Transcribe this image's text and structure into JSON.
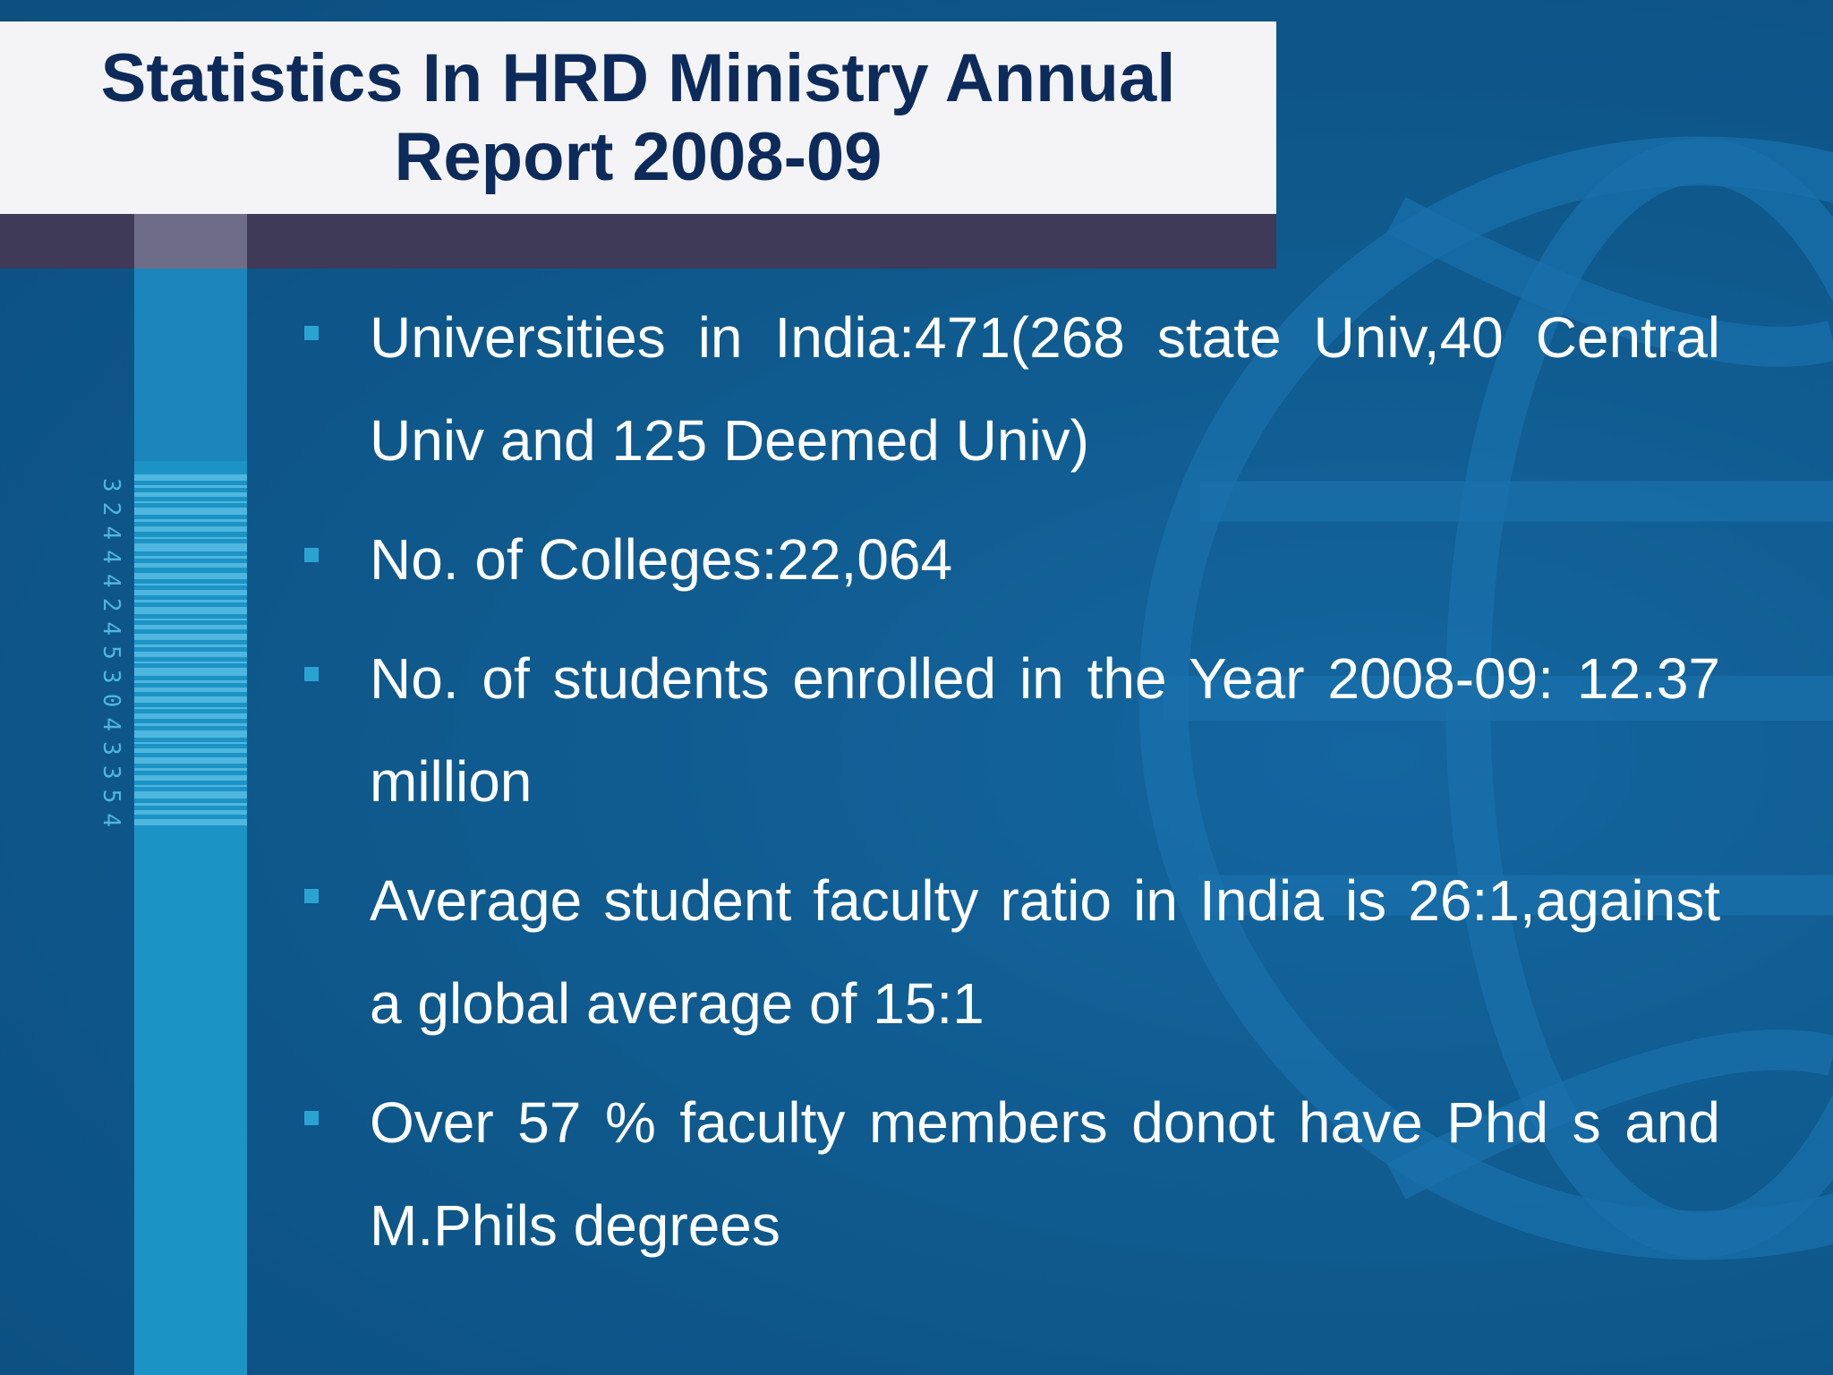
{
  "slide": {
    "title_line1": "Statistics In HRD Ministry Annual",
    "title_line2": "Report 2008-09",
    "barcode_number": "324442453043354",
    "bullets": [
      {
        "text": "Universities in India:471(268 state Univ,40 Central Univ and 125 Deemed Univ)"
      },
      {
        "text": "No. of  Colleges:22,064"
      },
      {
        "text": "No. of students enrolled in the Year 2008-09: 12.37 million"
      },
      {
        "text": "Average student faculty ratio in India is 26:1,against a global average of 15:1"
      },
      {
        "text": "Over 57 % faculty members donot have Phd s and M.Phils degrees"
      }
    ]
  },
  "colors": {
    "background": "#0f5a8e",
    "title_box": "#f4f4f6",
    "title_text": "#0d2b5a",
    "title_band": "#3e3a58",
    "stripe": "#1c93c5",
    "bullet_marker": "#2aa3d3",
    "body_text": "#ffffff"
  }
}
